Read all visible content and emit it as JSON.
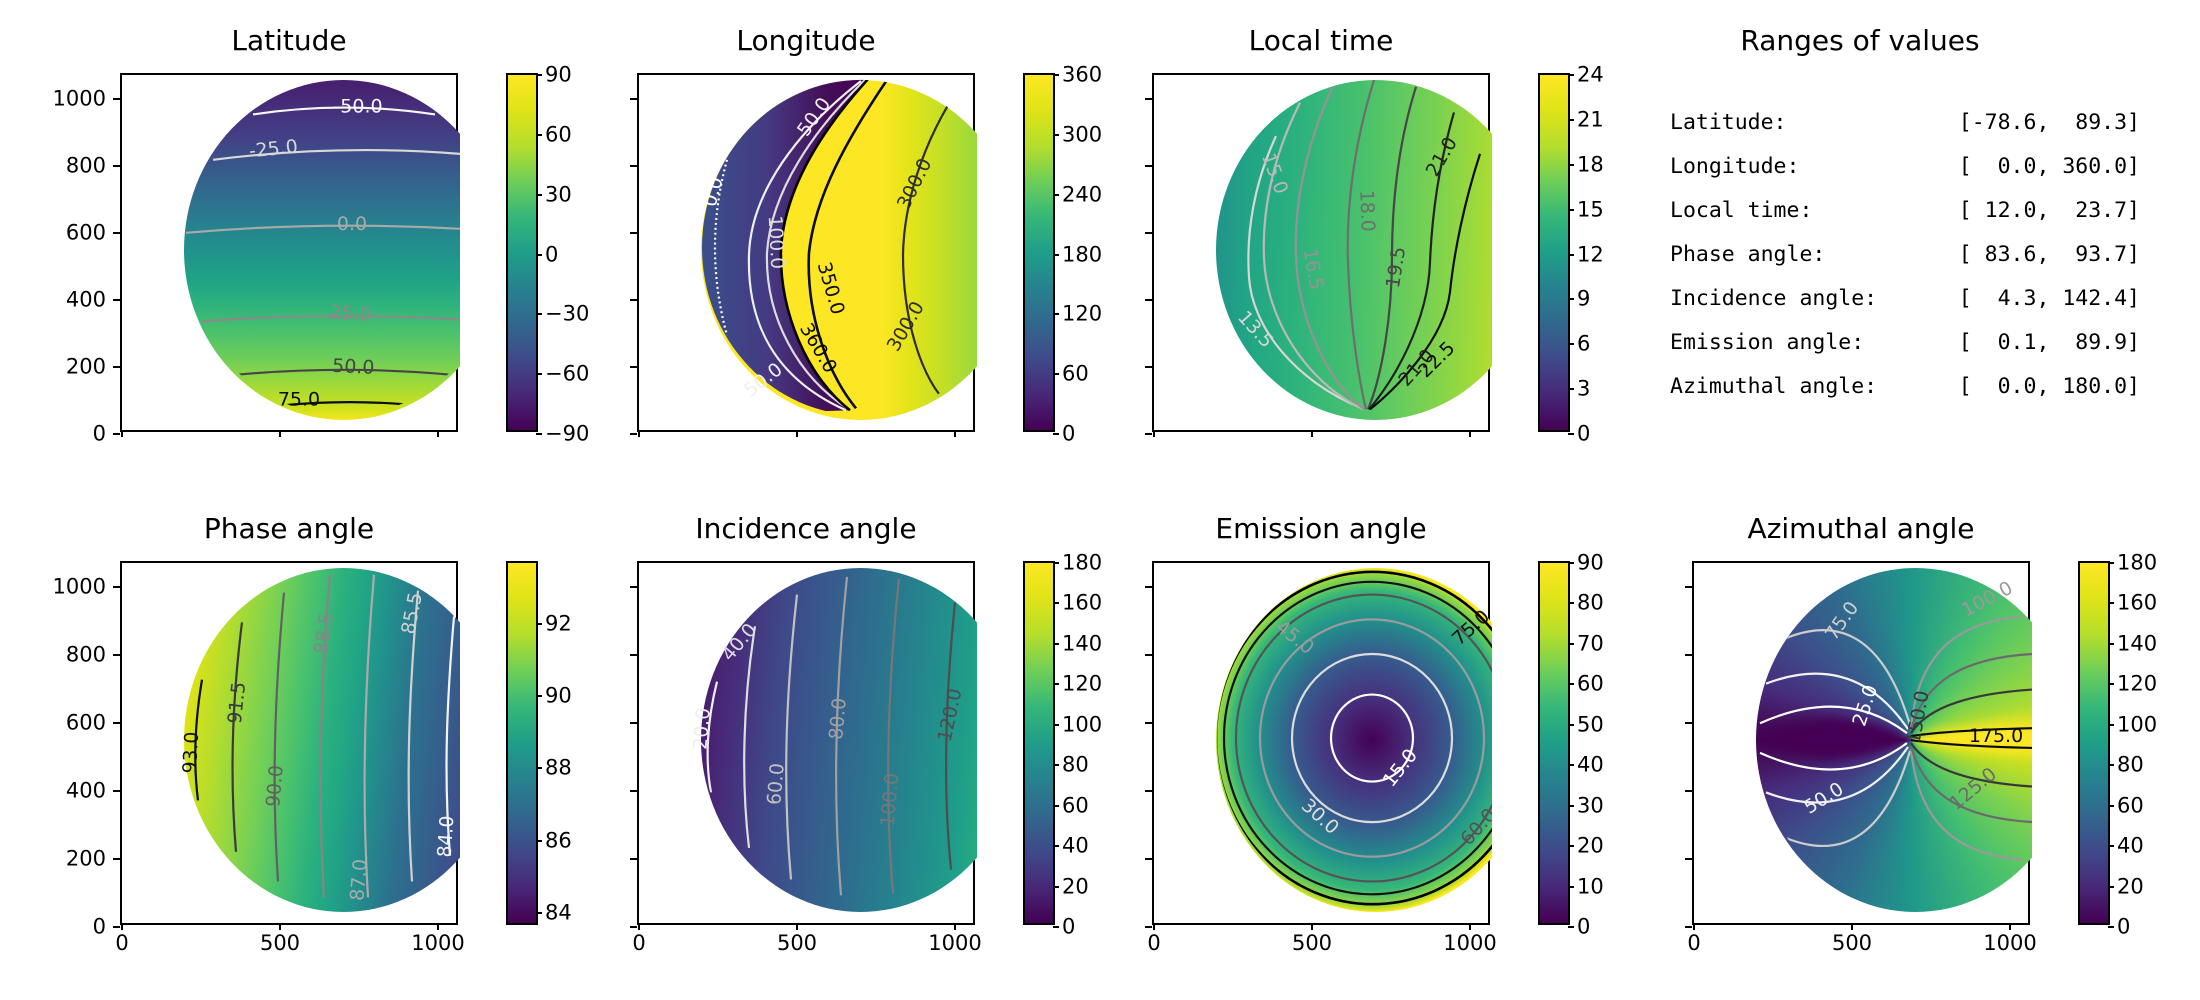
{
  "figure": {
    "background": "#ffffff",
    "axes_color": "#000000",
    "colormap": "viridis",
    "viridis_min": "#440154",
    "viridis_max": "#fde725"
  },
  "plots": [
    {
      "id": "latitude",
      "title": "Latitude",
      "y_ticks": [
        "1000",
        "800",
        "600",
        "400",
        "200",
        "0"
      ],
      "cb_ticks": [
        "90",
        "60",
        "30",
        "0",
        "−30",
        "−60",
        "−90"
      ],
      "contours": [
        {
          "label": "-50.0",
          "color": "#f7f7f7"
        },
        {
          "label": "-25.0",
          "color": "#d8d8d8"
        },
        {
          "label": "0.0",
          "color": "#a9a9a9"
        },
        {
          "label": "25.0",
          "color": "#8a8a8a"
        },
        {
          "label": "50.0",
          "color": "#454545"
        },
        {
          "label": "75.0",
          "color": "#0d0d0d"
        }
      ]
    },
    {
      "id": "longitude",
      "title": "Longitude",
      "cb_ticks": [
        "360",
        "300",
        "240",
        "180",
        "120",
        "60",
        "0"
      ],
      "contours": [
        {
          "label": "0.0",
          "color": "#ffffff"
        },
        {
          "label": "50.0",
          "color": "#f0f0f0"
        },
        {
          "label": "100.0",
          "color": "#dcdcdc"
        },
        {
          "label": "350.0",
          "color": "#0c0c0c"
        },
        {
          "label": "360.0",
          "color": "#060606"
        },
        {
          "label": "300.0",
          "color": "#2e2e2e"
        },
        {
          "label": "300.0",
          "color": "#2e2e2e"
        },
        {
          "label": "50.0",
          "color": "#f0f0f0"
        }
      ]
    },
    {
      "id": "local-time",
      "title": "Local time",
      "cb_ticks": [
        "24",
        "21",
        "18",
        "15",
        "12",
        "9",
        "6",
        "3",
        "0"
      ],
      "contours": [
        {
          "label": "13.5",
          "color": "#d6d6d6"
        },
        {
          "label": "15.0",
          "color": "#b9b9b9"
        },
        {
          "label": "16.5",
          "color": "#949494"
        },
        {
          "label": "18.0",
          "color": "#6e6e6e"
        },
        {
          "label": "19.5",
          "color": "#474747"
        },
        {
          "label": "21.0",
          "color": "#222222"
        },
        {
          "label": "21.0",
          "color": "#222222"
        },
        {
          "label": "22.5",
          "color": "#0d0d0d"
        }
      ]
    },
    {
      "id": "phase-angle",
      "title": "Phase angle",
      "y_ticks": [
        "1000",
        "800",
        "600",
        "400",
        "200",
        "0"
      ],
      "x_ticks": [
        "0",
        "500",
        "1000"
      ],
      "cb_ticks": [
        "92",
        "90",
        "88",
        "86",
        "84"
      ],
      "contours": [
        {
          "label": "93.0",
          "color": "#0f0f0f"
        },
        {
          "label": "91.5",
          "color": "#3a3a3a"
        },
        {
          "label": "90.0",
          "color": "#616161"
        },
        {
          "label": "88.5",
          "color": "#868686"
        },
        {
          "label": "87.0",
          "color": "#ababab"
        },
        {
          "label": "85.5",
          "color": "#d1d1d1"
        },
        {
          "label": "84.0",
          "color": "#f5f5f5"
        }
      ]
    },
    {
      "id": "incidence-angle",
      "title": "Incidence angle",
      "x_ticks": [
        "0",
        "500",
        "1000"
      ],
      "cb_ticks": [
        "180",
        "160",
        "140",
        "120",
        "100",
        "80",
        "60",
        "40",
        "20",
        "0"
      ],
      "contours": [
        {
          "label": "20.0",
          "color": "#efefef"
        },
        {
          "label": "40.0",
          "color": "#dedede"
        },
        {
          "label": "60.0",
          "color": "#c2c2c2"
        },
        {
          "label": "80.0",
          "color": "#a0a0a0"
        },
        {
          "label": "100.0",
          "color": "#777777"
        },
        {
          "label": "120.0",
          "color": "#4d4d4d"
        }
      ]
    },
    {
      "id": "emission-angle",
      "title": "Emission angle",
      "x_ticks": [
        "0",
        "500",
        "1000"
      ],
      "cb_ticks": [
        "90",
        "80",
        "70",
        "60",
        "50",
        "40",
        "30",
        "20",
        "10",
        "0"
      ],
      "contours": [
        {
          "label": "15.0",
          "color": "#ffffff"
        },
        {
          "label": "30.0",
          "color": "#dcdcdc"
        },
        {
          "label": "45.0",
          "color": "#9b9b9b"
        },
        {
          "label": "60.0",
          "color": "#545454"
        },
        {
          "label": "75.0",
          "color": "#121212"
        }
      ]
    },
    {
      "id": "azimuthal-angle",
      "title": "Azimuthal angle",
      "x_ticks": [
        "0",
        "500",
        "1000"
      ],
      "cb_ticks": [
        "180",
        "160",
        "140",
        "120",
        "100",
        "80",
        "60",
        "40",
        "20",
        "0"
      ],
      "contours": [
        {
          "label": "25.0",
          "color": "#ffffff"
        },
        {
          "label": "50.0",
          "color": "#f2f2f2"
        },
        {
          "label": "75.0",
          "color": "#cdcdcd"
        },
        {
          "label": "100.0",
          "color": "#9a9a9a"
        },
        {
          "label": "125.0",
          "color": "#6b6b6b"
        },
        {
          "label": "150.0",
          "color": "#383838"
        },
        {
          "label": "175.0",
          "color": "#0a0a0a"
        }
      ]
    }
  ],
  "panel": {
    "title": "Ranges of values",
    "rows": [
      {
        "label": "Latitude:",
        "value": "[-78.6,  89.3]"
      },
      {
        "label": "Longitude:",
        "value": "[  0.0, 360.0]"
      },
      {
        "label": "Local time:",
        "value": "[ 12.0,  23.7]"
      },
      {
        "label": "Phase angle:",
        "value": "[ 83.6,  93.7]"
      },
      {
        "label": "Incidence angle:",
        "value": "[  4.3, 142.4]"
      },
      {
        "label": "Emission angle:",
        "value": "[  0.1,  89.9]"
      },
      {
        "label": "Azimuthal angle:",
        "value": "[  0.0, 180.0]"
      }
    ]
  },
  "chart_data": [
    {
      "type": "heatmap",
      "title": "Latitude",
      "colormap": "viridis",
      "x_ticks": [
        0,
        500,
        1000
      ],
      "y_ticks": [
        0,
        200,
        400,
        600,
        800,
        1000
      ],
      "data_range": [
        -78.6,
        89.3
      ],
      "colorbar_range": [
        -90,
        90
      ],
      "colorbar_ticks": [
        90,
        60,
        30,
        0,
        -30,
        -60,
        -90
      ],
      "contour_levels": [
        -50,
        -25,
        0,
        25,
        50,
        75
      ],
      "description": "Planetary disk; latitude increases from -78.6 at top of disk to 89.3 at bottom; horizontal contour bands."
    },
    {
      "type": "heatmap",
      "title": "Longitude",
      "colormap": "viridis",
      "x_ticks": [
        0,
        500,
        1000
      ],
      "y_ticks": [
        0,
        200,
        400,
        600,
        800,
        1000
      ],
      "data_range": [
        0,
        360
      ],
      "colorbar_range": [
        0,
        360
      ],
      "colorbar_ticks": [
        360,
        300,
        240,
        180,
        120,
        60,
        0
      ],
      "contour_levels": [
        0,
        50,
        100,
        300,
        350,
        360
      ],
      "description": "Meridians converge at pole near bottom of disk; dark crescent (0-100 deg) on left, sharp 360/0 discontinuity, yellow-to-green (360-280 deg) on right."
    },
    {
      "type": "heatmap",
      "title": "Local time",
      "colormap": "viridis",
      "x_ticks": [
        0,
        500,
        1000
      ],
      "y_ticks": [
        0,
        200,
        400,
        600,
        800,
        1000
      ],
      "data_range": [
        12.0,
        23.7
      ],
      "colorbar_range": [
        0,
        24
      ],
      "colorbar_ticks": [
        24,
        21,
        18,
        15,
        12,
        9,
        6,
        3,
        0
      ],
      "contour_levels": [
        13.5,
        15.0,
        16.5,
        18.0,
        19.5,
        21.0,
        22.5
      ],
      "description": "Meridian-like contours converging at bottom pole; local time increases from ~12 (teal, left) to ~23.7 (yellow, right)."
    },
    {
      "type": "heatmap",
      "title": "Phase angle",
      "colormap": "viridis",
      "x_ticks": [
        0,
        500,
        1000
      ],
      "y_ticks": [
        0,
        200,
        400,
        600,
        800,
        1000
      ],
      "data_range": [
        83.6,
        93.7
      ],
      "colorbar_range": [
        83.6,
        93.7
      ],
      "colorbar_ticks": [
        92,
        90,
        88,
        86,
        84
      ],
      "contour_levels": [
        84.0,
        85.5,
        87.0,
        88.5,
        90.0,
        91.5,
        93.0
      ],
      "description": "Near-vertical contours; phase angle decreases from 93.7 (yellow, left limb) to 83.6 (dark purple, right limb)."
    },
    {
      "type": "heatmap",
      "title": "Incidence angle",
      "colormap": "viridis",
      "x_ticks": [
        0,
        500,
        1000
      ],
      "y_ticks": [
        0,
        200,
        400,
        600,
        800,
        1000
      ],
      "data_range": [
        4.3,
        142.4
      ],
      "colorbar_range": [
        0,
        180
      ],
      "colorbar_ticks": [
        180,
        160,
        140,
        120,
        100,
        80,
        60,
        40,
        20,
        0
      ],
      "contour_levels": [
        20,
        40,
        60,
        80,
        100,
        120
      ],
      "description": "Near-vertical slightly curved contours; incidence increases from ~4 (dark purple, upper left) to ~142 (green, right limb)."
    },
    {
      "type": "heatmap",
      "title": "Emission angle",
      "colormap": "viridis",
      "x_ticks": [
        0,
        500,
        1000
      ],
      "y_ticks": [
        0,
        200,
        400,
        600,
        800,
        1000
      ],
      "data_range": [
        0.1,
        89.9
      ],
      "colorbar_range": [
        0,
        90
      ],
      "colorbar_ticks": [
        90,
        80,
        70,
        60,
        50,
        40,
        30,
        20,
        10,
        0
      ],
      "contour_levels": [
        15,
        30,
        45,
        60,
        75
      ],
      "description": "Concentric circular contours centered near disk center; emission 0 (dark purple) at center rising to 90 (yellow) at limb."
    },
    {
      "type": "heatmap",
      "title": "Azimuthal angle",
      "colormap": "viridis",
      "x_ticks": [
        0,
        500,
        1000
      ],
      "y_ticks": [
        0,
        200,
        400,
        600,
        800,
        1000
      ],
      "data_range": [
        0.0,
        180.0
      ],
      "colorbar_range": [
        0,
        180
      ],
      "colorbar_ticks": [
        180,
        160,
        140,
        120,
        100,
        80,
        60,
        40,
        20,
        0
      ],
      "contour_levels": [
        25,
        50,
        75,
        100,
        125,
        150,
        175
      ],
      "description": "Lobed contours converging near disk center; azimuth 0 (dark purple wedge) toward left limb, 180 (yellow wedge) toward right limb, ~90-100 (teal) top and bottom."
    }
  ]
}
